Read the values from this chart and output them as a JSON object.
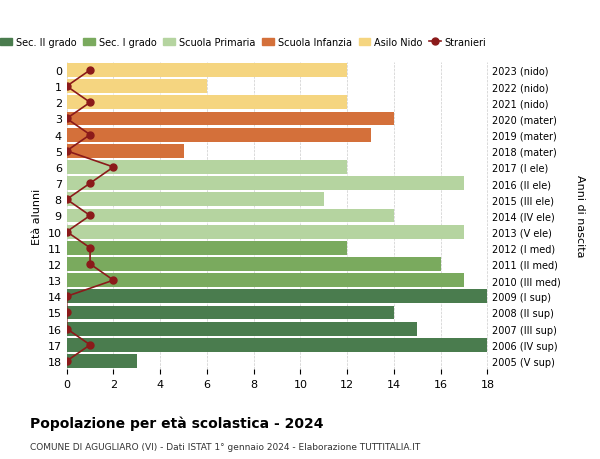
{
  "ages": [
    18,
    17,
    16,
    15,
    14,
    13,
    12,
    11,
    10,
    9,
    8,
    7,
    6,
    5,
    4,
    3,
    2,
    1,
    0
  ],
  "years_labels": [
    "2005 (V sup)",
    "2006 (IV sup)",
    "2007 (III sup)",
    "2008 (II sup)",
    "2009 (I sup)",
    "2010 (III med)",
    "2011 (II med)",
    "2012 (I med)",
    "2013 (V ele)",
    "2014 (IV ele)",
    "2015 (III ele)",
    "2016 (II ele)",
    "2017 (I ele)",
    "2018 (mater)",
    "2019 (mater)",
    "2020 (mater)",
    "2021 (nido)",
    "2022 (nido)",
    "2023 (nido)"
  ],
  "bar_values": [
    3,
    18,
    15,
    14,
    18,
    17,
    16,
    12,
    17,
    14,
    11,
    17,
    12,
    5,
    13,
    14,
    12,
    6,
    12
  ],
  "bar_colors": [
    "#4a7c4e",
    "#4a7c4e",
    "#4a7c4e",
    "#4a7c4e",
    "#4a7c4e",
    "#7aaa5e",
    "#7aaa5e",
    "#7aaa5e",
    "#b5d4a0",
    "#b5d4a0",
    "#b5d4a0",
    "#b5d4a0",
    "#b5d4a0",
    "#d4703a",
    "#d4703a",
    "#d4703a",
    "#f5d580",
    "#f5d580",
    "#f5d580"
  ],
  "stranieri_values": [
    0,
    1,
    0,
    0,
    0,
    2,
    1,
    1,
    0,
    1,
    0,
    1,
    2,
    0,
    1,
    0,
    1,
    0,
    1
  ],
  "stranieri_color": "#8b1a1a",
  "title": "Popolazione per età scolastica - 2024",
  "subtitle": "COMUNE DI AGUGLIARO (VI) - Dati ISTAT 1° gennaio 2024 - Elaborazione TUTTITALIA.IT",
  "ylabel": "Età alunni",
  "ylabel_right": "Anni di nascita",
  "xlim": [
    0,
    18
  ],
  "legend_items": [
    {
      "label": "Sec. II grado",
      "color": "#4a7c4e"
    },
    {
      "label": "Sec. I grado",
      "color": "#7aaa5e"
    },
    {
      "label": "Scuola Primaria",
      "color": "#b5d4a0"
    },
    {
      "label": "Scuola Infanzia",
      "color": "#d4703a"
    },
    {
      "label": "Asilo Nido",
      "color": "#f5d580"
    },
    {
      "label": "Stranieri",
      "color": "#8b1a1a"
    }
  ],
  "bg_color": "#ffffff",
  "grid_color": "#cccccc",
  "bar_height": 0.85
}
